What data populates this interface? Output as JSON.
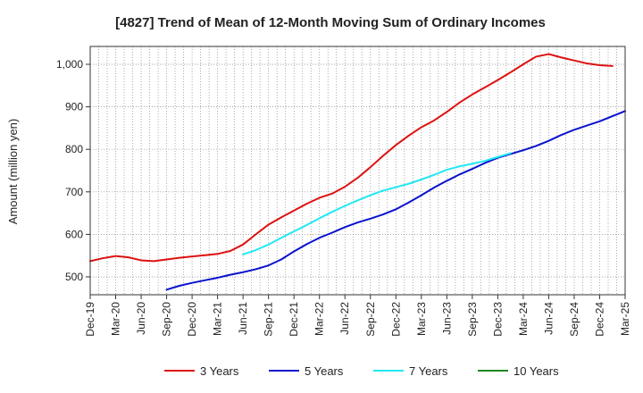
{
  "chart_data": {
    "type": "line",
    "title": "[4827]  Trend of Mean of 12-Month Moving Sum of Ordinary Incomes",
    "xlabel": "",
    "ylabel": "Amount (million yen)",
    "ylim": [
      458,
      1042
    ],
    "yticks": [
      500,
      600,
      700,
      800,
      900,
      1000
    ],
    "ytick_labels": [
      "500",
      "600",
      "700",
      "800",
      "900",
      "1,000"
    ],
    "x_tick_labels": [
      "Dec-19",
      "Mar-20",
      "Jun-20",
      "Sep-20",
      "Dec-20",
      "Mar-21",
      "Jun-21",
      "Sep-21",
      "Dec-21",
      "Mar-22",
      "Jun-22",
      "Sep-22",
      "Dec-22",
      "Mar-23",
      "Jun-23",
      "Sep-23",
      "Dec-23",
      "Mar-24",
      "Jun-24",
      "Sep-24",
      "Dec-24",
      "Mar-25"
    ],
    "grid": true,
    "legend_position": "bottom",
    "series": [
      {
        "name": "3 Years",
        "color": "#dd1111",
        "points": [
          [
            0,
            537
          ],
          [
            1,
            544
          ],
          [
            2,
            549
          ],
          [
            3,
            546
          ],
          [
            4,
            539
          ],
          [
            5,
            537
          ],
          [
            6,
            541
          ],
          [
            7,
            545
          ],
          [
            8,
            548
          ],
          [
            9,
            551
          ],
          [
            10,
            554
          ],
          [
            11,
            561
          ],
          [
            12,
            576
          ],
          [
            13,
            600
          ],
          [
            14,
            623
          ],
          [
            15,
            640
          ],
          [
            16,
            656
          ],
          [
            17,
            672
          ],
          [
            18,
            686
          ],
          [
            19,
            696
          ],
          [
            20,
            712
          ],
          [
            21,
            733
          ],
          [
            22,
            758
          ],
          [
            23,
            785
          ],
          [
            24,
            810
          ],
          [
            25,
            832
          ],
          [
            26,
            852
          ],
          [
            27,
            868
          ],
          [
            28,
            888
          ],
          [
            29,
            910
          ],
          [
            30,
            929
          ],
          [
            31,
            946
          ],
          [
            32,
            963
          ],
          [
            33,
            981
          ],
          [
            34,
            1000
          ],
          [
            35,
            1018
          ],
          [
            36,
            1024
          ],
          [
            37,
            1016
          ],
          [
            38,
            1009
          ],
          [
            39,
            1002
          ],
          [
            40,
            998
          ],
          [
            41,
            996
          ]
        ]
      },
      {
        "name": "5 Years",
        "color": "#0a12cc",
        "points": [
          [
            6,
            470
          ],
          [
            7,
            479
          ],
          [
            8,
            486
          ],
          [
            9,
            492
          ],
          [
            10,
            498
          ],
          [
            11,
            505
          ],
          [
            12,
            511
          ],
          [
            13,
            518
          ],
          [
            14,
            527
          ],
          [
            15,
            541
          ],
          [
            16,
            560
          ],
          [
            17,
            577
          ],
          [
            18,
            592
          ],
          [
            19,
            604
          ],
          [
            20,
            617
          ],
          [
            21,
            628
          ],
          [
            22,
            637
          ],
          [
            23,
            647
          ],
          [
            24,
            659
          ],
          [
            25,
            675
          ],
          [
            26,
            692
          ],
          [
            27,
            710
          ],
          [
            28,
            726
          ],
          [
            29,
            741
          ],
          [
            30,
            754
          ],
          [
            31,
            768
          ],
          [
            32,
            780
          ],
          [
            33,
            789
          ],
          [
            34,
            798
          ],
          [
            35,
            808
          ],
          [
            36,
            820
          ],
          [
            37,
            834
          ],
          [
            38,
            846
          ],
          [
            39,
            856
          ],
          [
            40,
            866
          ],
          [
            41,
            878
          ],
          [
            42,
            890
          ]
        ]
      },
      {
        "name": "7 Years",
        "color": "#22e8f2",
        "points": [
          [
            12,
            553
          ],
          [
            13,
            563
          ],
          [
            14,
            576
          ],
          [
            15,
            592
          ],
          [
            16,
            607
          ],
          [
            17,
            622
          ],
          [
            18,
            638
          ],
          [
            19,
            653
          ],
          [
            20,
            667
          ],
          [
            21,
            680
          ],
          [
            22,
            692
          ],
          [
            23,
            703
          ],
          [
            24,
            711
          ],
          [
            25,
            719
          ],
          [
            26,
            729
          ],
          [
            27,
            740
          ],
          [
            28,
            752
          ],
          [
            29,
            760
          ],
          [
            30,
            766
          ],
          [
            31,
            773
          ],
          [
            32,
            782
          ],
          [
            33,
            791
          ]
        ]
      },
      {
        "name": "10 Years",
        "color": "#228822",
        "points": []
      }
    ]
  }
}
